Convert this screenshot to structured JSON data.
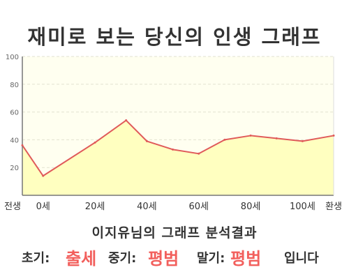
{
  "page": {
    "title": "재미로 보는 당신의 인생 그래프"
  },
  "chart_data": {
    "type": "area",
    "title": "재미로 보는 당신의 인생 그래프",
    "x": [
      -8,
      0,
      20,
      32,
      40,
      50,
      60,
      70,
      80,
      90,
      100,
      112
    ],
    "values": [
      36,
      14,
      38,
      54,
      39,
      33,
      30,
      40,
      43,
      41,
      39,
      43
    ],
    "categories": [
      "전생",
      "0세",
      "20세",
      "40세",
      "60세",
      "80세",
      "100세",
      "환생"
    ],
    "category_x": [
      -8,
      0,
      20,
      40,
      60,
      80,
      100,
      112
    ],
    "xlim": [
      -8,
      112
    ],
    "ylim": [
      0,
      100
    ],
    "yticks": [
      "20",
      "40",
      "60",
      "80",
      "100"
    ],
    "ytick_values": [
      20,
      40,
      60,
      80,
      100
    ],
    "grid": true,
    "colors": {
      "line": "#e05a5a",
      "fill": "#ffffc0",
      "plot_bg": "#fffff0",
      "grid": "#e2e2d0",
      "axis": "#777777",
      "highlight": "#f25f5c",
      "text": "#333333"
    }
  },
  "summary": {
    "heading": "이지유님의 그래프 분석결과",
    "early_label": "초기:",
    "early_value": "출세",
    "mid_label": "중기:",
    "mid_value": "평범",
    "late_label": "말기:",
    "late_value": "평범",
    "suffix": "입니다"
  }
}
